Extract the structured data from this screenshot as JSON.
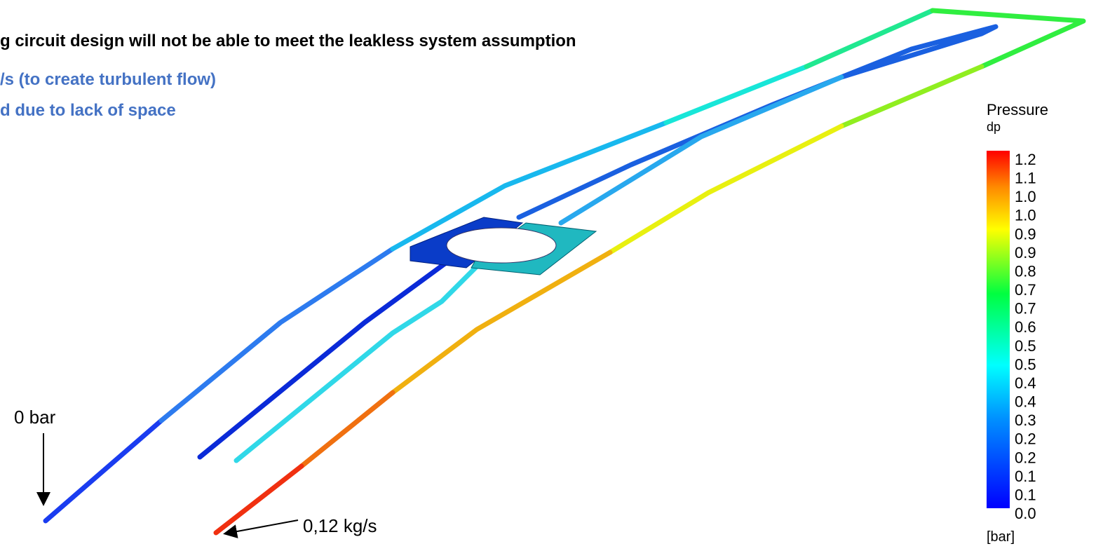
{
  "slide": {
    "heading": "g circuit design will not be able to meet the leakless system assumption",
    "bullets": [
      "/s (to create turbulent flow)",
      "d due to lack of space"
    ],
    "annotations": {
      "outlet": "0 bar",
      "inlet": "0,12 kg/s"
    },
    "legend": {
      "title": "Pressure",
      "variable": "dp",
      "tick_labels": [
        "1.2",
        "1.1",
        "1.0",
        "1.0",
        "0.9",
        "0.9",
        "0.8",
        "0.7",
        "0.7",
        "0.6",
        "0.5",
        "0.5",
        "0.4",
        "0.4",
        "0.3",
        "0.2",
        "0.2",
        "0.1",
        "0.1",
        "0.0"
      ],
      "unit": "[bar]"
    }
  }
}
